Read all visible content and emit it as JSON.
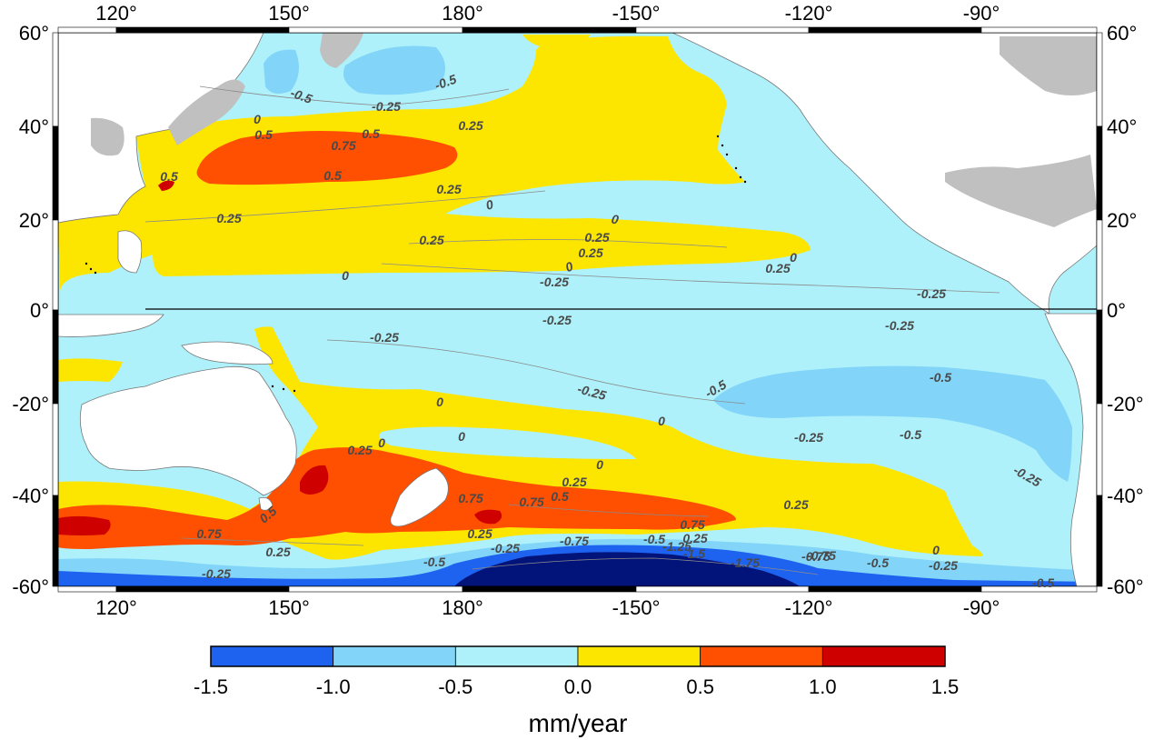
{
  "chart_data": {
    "type": "heatmap",
    "units": "mm/year",
    "colors": {
      "ocean_neg_0": "#aef1fa",
      "ocean_neg_05": "#82d5f8",
      "ocean_neg_10": "#1e62f0",
      "ocean_neg_15": "#02137a",
      "pos_0": "#fce600",
      "pos_05": "#ff4f00",
      "pos_10": "#cf0000",
      "land": "#c0c0c0",
      "land_white": "#ffffff"
    },
    "lon_ticks": [
      "120°",
      "150°",
      "180°",
      "-150°",
      "-120°",
      "-90°"
    ],
    "lat_ticks_left": [
      "60°",
      "40°",
      "20°",
      "0°",
      "-20°",
      "-40°",
      "-60°"
    ],
    "lat_ticks_right": [
      "60°",
      "40°",
      "20°",
      "0°",
      "-20°",
      "-40°",
      "-60°"
    ],
    "colorbar": {
      "boundaries": [
        "-1.5",
        "-1.0",
        "-0.5",
        "0.0",
        "0.5",
        "1.0",
        "1.5"
      ],
      "bins": [
        {
          "from": -1.5,
          "to": -1.0,
          "color": "#1e62f0"
        },
        {
          "from": -1.0,
          "to": -0.5,
          "color": "#82d5f8"
        },
        {
          "from": -0.5,
          "to": 0.0,
          "color": "#aef1fa"
        },
        {
          "from": 0.0,
          "to": 0.5,
          "color": "#fce600"
        },
        {
          "from": 0.5,
          "to": 1.0,
          "color": "#ff4f00"
        },
        {
          "from": 1.0,
          "to": 1.5,
          "color": "#cf0000"
        }
      ]
    },
    "contour_labels": [
      {
        "text": "-0.5"
      },
      {
        "text": "-0.25"
      },
      {
        "text": "-0.5"
      },
      {
        "text": "0.25"
      },
      {
        "text": "0"
      },
      {
        "text": "0.5"
      },
      {
        "text": "0.75"
      },
      {
        "text": "0.5"
      },
      {
        "text": "0.5"
      },
      {
        "text": "0.25"
      },
      {
        "text": "0.5"
      },
      {
        "text": "0.25"
      },
      {
        "text": "0"
      },
      {
        "text": "0.25"
      },
      {
        "text": "0"
      },
      {
        "text": "0.25"
      },
      {
        "text": "0.25"
      },
      {
        "text": "0.25"
      },
      {
        "text": "0"
      },
      {
        "text": "0"
      },
      {
        "text": "-0.25"
      },
      {
        "text": "0"
      },
      {
        "text": "-0.25"
      },
      {
        "text": "-0.25"
      },
      {
        "text": "-0.25"
      },
      {
        "text": "-0.25"
      },
      {
        "text": "-0.25"
      },
      {
        "text": "-0.5"
      },
      {
        "text": "-0.5"
      },
      {
        "text": "0"
      },
      {
        "text": "0"
      },
      {
        "text": "-0.25"
      },
      {
        "text": "-0.5"
      },
      {
        "text": "-0.25"
      },
      {
        "text": "0.25"
      },
      {
        "text": "0"
      },
      {
        "text": "0"
      },
      {
        "text": "0"
      },
      {
        "text": "0.25"
      },
      {
        "text": "0.25"
      },
      {
        "text": "0.75"
      },
      {
        "text": "0.75"
      },
      {
        "text": "0.5"
      },
      {
        "text": "0.75"
      },
      {
        "text": "0.5"
      },
      {
        "text": "0.25"
      },
      {
        "text": "-0.25"
      },
      {
        "text": "-0.75"
      },
      {
        "text": "-0.5"
      },
      {
        "text": "-1.25"
      },
      {
        "text": "-1.5"
      },
      {
        "text": "-1.75"
      },
      {
        "text": "-0.75"
      },
      {
        "text": "-0.5"
      },
      {
        "text": "0"
      },
      {
        "text": "-0.25"
      },
      {
        "text": "-0.75"
      },
      {
        "text": "-0.5"
      },
      {
        "text": "0.25"
      },
      {
        "text": "0.75"
      },
      {
        "text": "0.25"
      },
      {
        "text": "-0.25"
      },
      {
        "text": "-0.5"
      }
    ]
  }
}
